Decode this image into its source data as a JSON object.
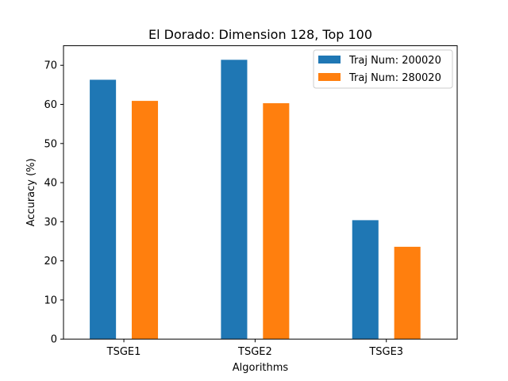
{
  "chart_data": {
    "type": "bar",
    "title": "El Dorado: Dimension 128, Top 100",
    "xlabel": "Algorithms",
    "ylabel": "Accuracy (%)",
    "categories": [
      "TSGE1",
      "TSGE2",
      "TSGE3"
    ],
    "series": [
      {
        "name": "Traj Num: 200020",
        "values": [
          66.3,
          71.4,
          30.4
        ],
        "color": "#1f77b4"
      },
      {
        "name": "Traj Num: 280020",
        "values": [
          60.9,
          60.3,
          23.6
        ],
        "color": "#ff7f0e"
      }
    ],
    "ylim": [
      0,
      75
    ],
    "yticks": [
      0,
      10,
      20,
      30,
      40,
      50,
      60,
      70
    ],
    "legend_position": "top-right",
    "grid": false
  }
}
